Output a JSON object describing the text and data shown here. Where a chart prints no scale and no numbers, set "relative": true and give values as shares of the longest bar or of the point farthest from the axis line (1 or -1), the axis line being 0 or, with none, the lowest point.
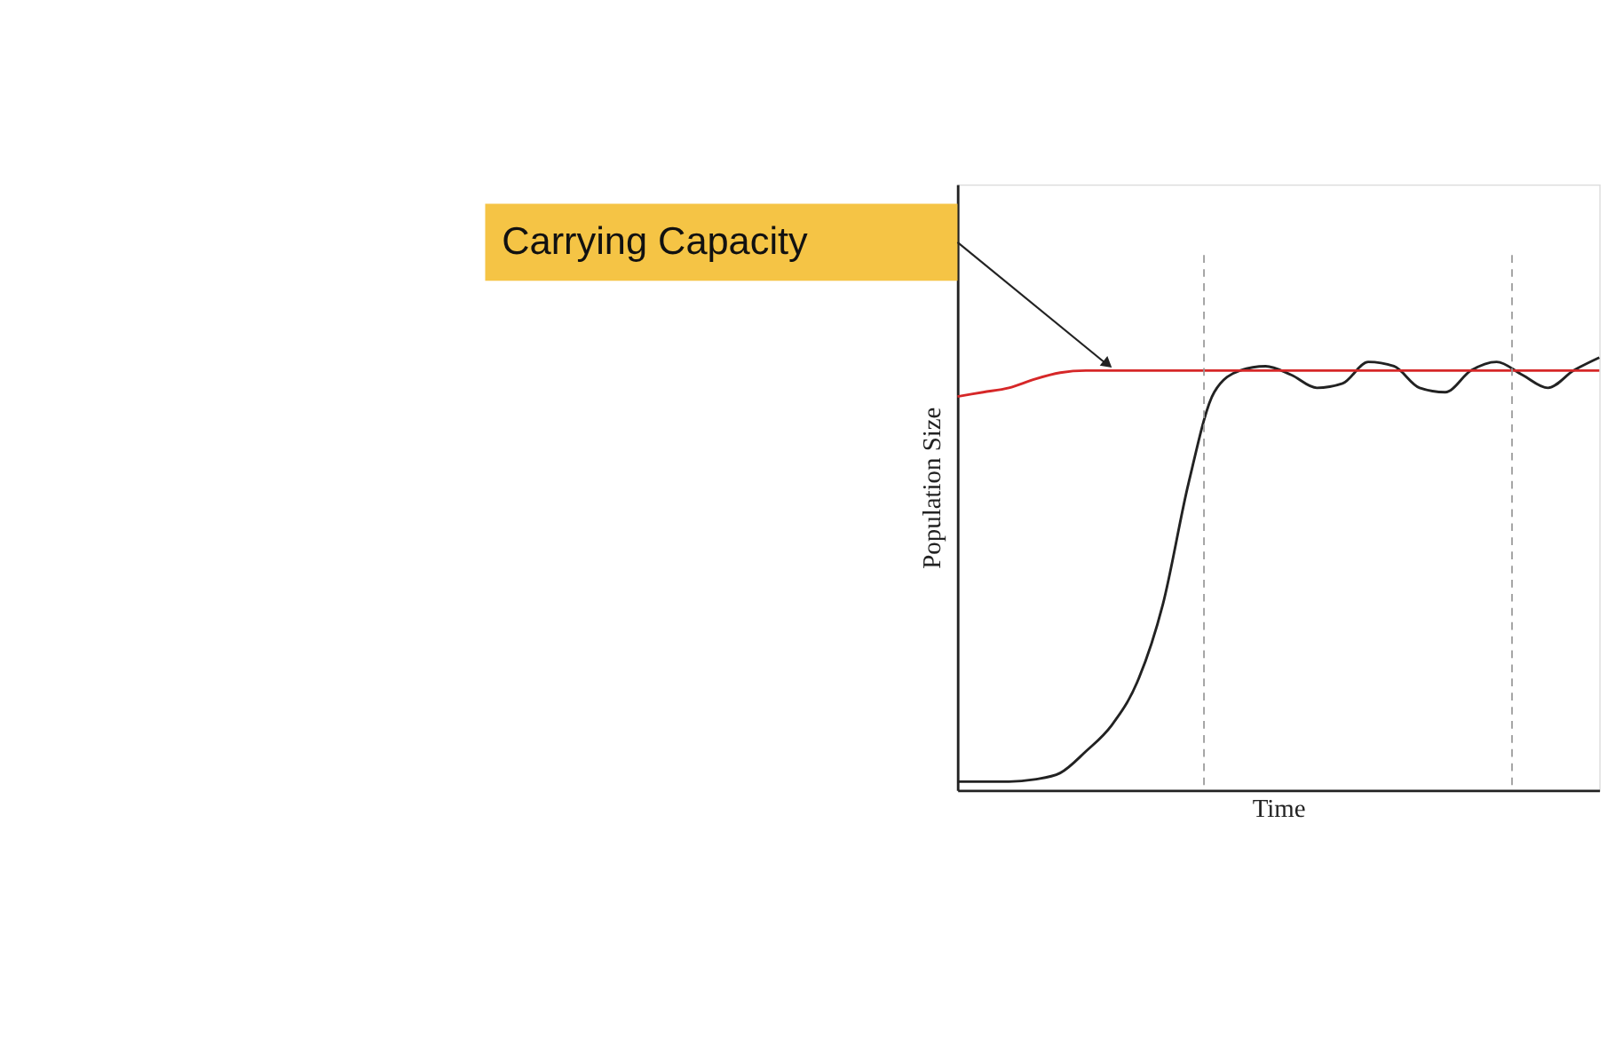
{
  "chart_data": {
    "type": "line",
    "relative": true,
    "xlabel": "Time",
    "ylabel": "Population Size",
    "categories": [
      null,
      null,
      null,
      null,
      null,
      null,
      null,
      null,
      null,
      null,
      null,
      null,
      null,
      null,
      null,
      null,
      null,
      null,
      null,
      null,
      null,
      null,
      null,
      null,
      null,
      null
    ],
    "series": [
      {
        "color": "#222222",
        "values": [
          0.02,
          0.02,
          0.02,
          0.025,
          0.04,
          0.09,
          0.15,
          0.25,
          0.43,
          0.71,
          0.92,
          0.97,
          0.98,
          0.96,
          0.93,
          0.94,
          0.99,
          0.98,
          0.93,
          0.92,
          0.97,
          0.99,
          0.96,
          0.93,
          0.97,
          1.0
        ]
      },
      {
        "color": "#d62728",
        "values": [
          0.91,
          0.92,
          0.93,
          0.95,
          0.965,
          0.97,
          0.97,
          0.97,
          0.97,
          0.97,
          0.97,
          0.97,
          0.97,
          0.97,
          0.97,
          0.97,
          0.97,
          0.97,
          0.97,
          0.97,
          0.97,
          0.97,
          0.97,
          0.97,
          0.97,
          0.97
        ]
      }
    ],
    "annotations": [
      "Carrying Capacity"
    ],
    "grid": false,
    "tick_labels": false
  }
}
